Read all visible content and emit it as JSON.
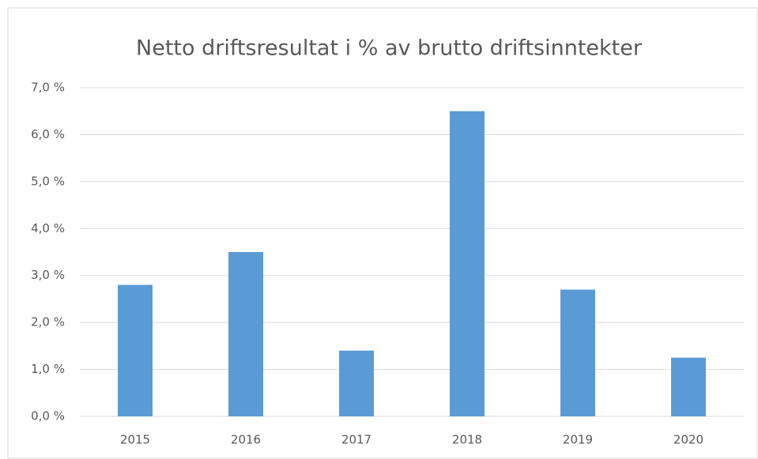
{
  "chart_data": {
    "type": "bar",
    "title": "Netto driftsresultat i % av brutto driftsinntekter",
    "categories": [
      "2015",
      "2016",
      "2017",
      "2018",
      "2019",
      "2020"
    ],
    "values": [
      2.8,
      3.5,
      1.4,
      6.5,
      2.7,
      1.25
    ],
    "color": "#5b9bd5",
    "ylim": [
      0,
      7
    ],
    "yticks": [
      {
        "value": 0,
        "label": "0,0 %"
      },
      {
        "value": 1,
        "label": "1,0 %"
      },
      {
        "value": 2,
        "label": "2,0 %"
      },
      {
        "value": 3,
        "label": "3,0 %"
      },
      {
        "value": 4,
        "label": "4,0 %"
      },
      {
        "value": 5,
        "label": "5,0 %"
      },
      {
        "value": 6,
        "label": "6,0 %"
      },
      {
        "value": 7,
        "label": "7,0 %"
      }
    ],
    "grid": true
  }
}
